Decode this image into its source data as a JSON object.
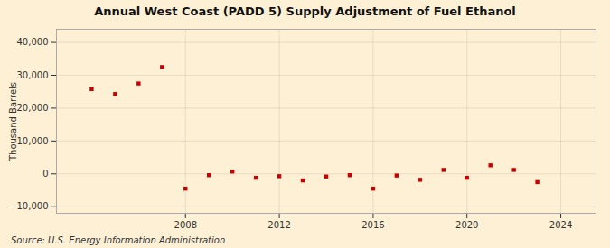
{
  "chart_data": {
    "type": "scatter",
    "title": "Annual West Coast (PADD 5) Supply Adjustment of Fuel Ethanol",
    "ylabel": "Thousand Barrels",
    "source": "Source: U.S. Energy Information Administration",
    "x": [
      2004,
      2005,
      2006,
      2007,
      2008,
      2009,
      2010,
      2011,
      2012,
      2013,
      2014,
      2015,
      2016,
      2017,
      2018,
      2019,
      2020,
      2021,
      2022,
      2023
    ],
    "values": [
      25800,
      24300,
      27500,
      32500,
      -4500,
      -400,
      700,
      -1200,
      -700,
      -2000,
      -800,
      -400,
      -4500,
      -500,
      -1800,
      1200,
      -1200,
      2600,
      1200,
      -2500
    ],
    "color": "#cc0000",
    "marker": "square",
    "ylim": [
      -12000,
      44000
    ],
    "yticks": [
      {
        "value": -10000,
        "label": "-10,000"
      },
      0,
      {
        "value": 10000,
        "label": "10,000"
      },
      {
        "value": 20000,
        "label": "20,000"
      },
      {
        "value": 30000,
        "label": "30,000"
      },
      {
        "value": 40000,
        "label": "40,000"
      }
    ],
    "xlim": [
      2002.5,
      2025.5
    ],
    "xticks": [
      2008,
      2012,
      2016,
      2020,
      2024
    ],
    "grid": true
  }
}
